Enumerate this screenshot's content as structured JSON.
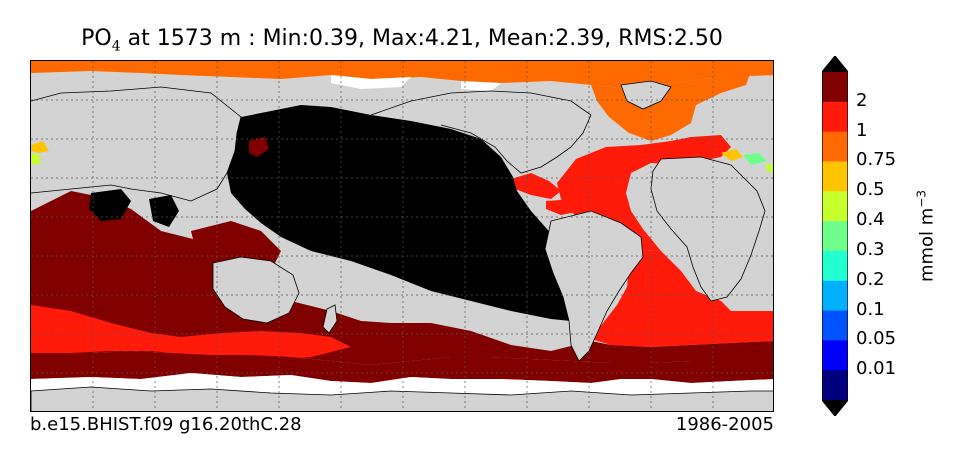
{
  "title": {
    "variable_main": "PO",
    "variable_sub": "4",
    "rest": " at 1573 m : Min:0.39, Max:4.21, Mean:2.39, RMS:2.50"
  },
  "footer": {
    "case_name": "b.e15.BHIST.f09 g16.20thC.28",
    "period": "1986-2005"
  },
  "colorbar": {
    "unit_main": "mmol m",
    "unit_sup": "−3",
    "levels": [
      "2",
      "1",
      "0.75",
      "0.5",
      "0.4",
      "0.3",
      "0.2",
      "0.1",
      "0.05",
      "0.01"
    ],
    "colors": [
      "#800000",
      "#ff1a0a",
      "#ff6a00",
      "#ffc400",
      "#c6ff2c",
      "#6dff8a",
      "#24ffd1",
      "#00b0ff",
      "#0054ff",
      "#0000ff",
      "#00007f"
    ],
    "extend": "both"
  },
  "map": {
    "projection": "cylindrical",
    "land_color": "#d3d3d3",
    "gridlines": "dotted",
    "field_colors": {
      "over_2": "#800000",
      "above_4": "#000000",
      "1_to_2": "#ff1a0a",
      "0.75_to_1": "#ff6a00",
      "0.5_to_0.75": "#ffc400",
      "0.3_to_0.4": "#6dff8a",
      "0.4_to_0.5": "#c6ff2c",
      "no_data": "#ffffff"
    }
  }
}
